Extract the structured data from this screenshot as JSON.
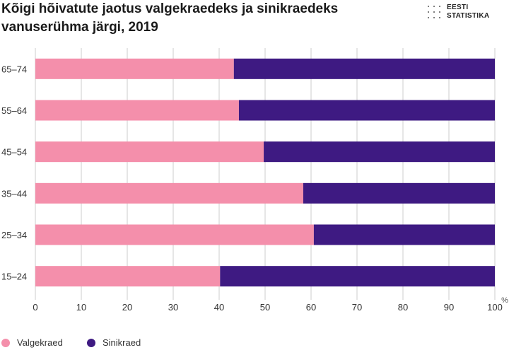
{
  "chart_data": {
    "type": "bar",
    "orientation": "horizontal",
    "stacked": true,
    "title": "Kõigi hõivatute jaotus valgekraedeks ja sinikraedeks vanuserühma järgi, 2019",
    "categories": [
      "65–74",
      "55–64",
      "45–54",
      "35–44",
      "25–34",
      "15–24"
    ],
    "series": [
      {
        "name": "Valgekraed",
        "color": "#f48fab",
        "values": [
          43.2,
          44.3,
          49.7,
          58.3,
          60.6,
          40.2
        ]
      },
      {
        "name": "Sinikraed",
        "color": "#3e1a82",
        "values": [
          56.8,
          55.7,
          50.3,
          41.7,
          39.4,
          59.8
        ]
      }
    ],
    "xlim": [
      0,
      100
    ],
    "xticks": [
      0,
      10,
      20,
      30,
      40,
      50,
      60,
      70,
      80,
      90,
      100
    ],
    "unit_label": "%",
    "grid": true,
    "legend_position": "bottom-left"
  },
  "logo": {
    "line1": "EESTI",
    "line2": "STATISTIKA"
  },
  "colors": {
    "grid": "#cccccc",
    "axis_text": "#333333"
  }
}
